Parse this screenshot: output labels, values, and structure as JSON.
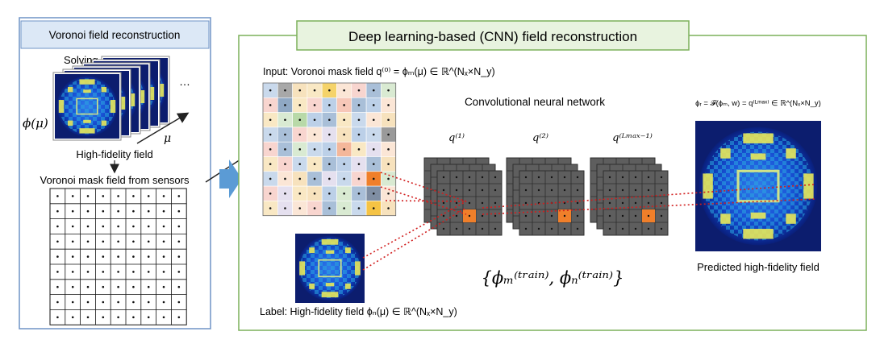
{
  "left_panel": {
    "title": "Voronoi field reconstruction",
    "solving": "Solving  𝓜(ϕ(μ),μ) = 0",
    "phi_label": "ϕ(μ)",
    "mu_label": "μ",
    "dots_label": "…",
    "hf_label": "High-fidelity field",
    "mask_label": "Voronoi mask field from sensors"
  },
  "right_panel": {
    "title": "Deep learning-based (CNN) field reconstruction",
    "input_label": "Input: Voronoi mask field q⁽⁰⁾ = ϕₘ(μ) ∈ ℝ^(Nₓ×N_y)",
    "cnn_label": "Convolutional neural network",
    "q1": "q⁽¹⁾",
    "q2": "q⁽²⁾",
    "q3": "q⁽ᴸᵐᵃˣ⁻¹⁾",
    "output_formula": "ϕᵣ = 𝓕(ϕₘ, w) = q⁽ᴸᵐᵃˣ⁾ ∈ ℝ^(Nₓ×N_y)",
    "train_set": "{ϕₘ⁽ᵗʳᵃⁱⁿ⁾, ϕₙ⁽ᵗʳᵃⁱⁿ⁾}",
    "label_text": "Label: High-fidelity field ϕₙ(μ) ∈ ℝ^(Nₓ×N_y)",
    "predicted": "Predicted high-fidelity field"
  },
  "colors": {
    "left_border": "#6f93c6",
    "title_fill": "#dce8f6",
    "right_border": "#7cb05a",
    "title_fill_green": "#e8f3df",
    "cnn_cell": "#5e5e5e",
    "highlight": "#f07f2a",
    "connector": "#d11f1f",
    "arrow": "#5b9bd5"
  }
}
